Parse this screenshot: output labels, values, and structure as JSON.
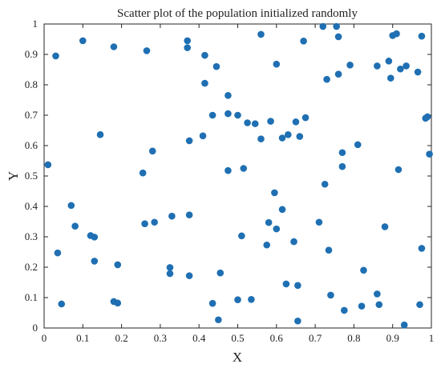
{
  "chart_data": {
    "type": "scatter",
    "title": "Scatter plot of the population initialized randomly",
    "xlabel": "X",
    "ylabel": "Y",
    "xlim": [
      0,
      1
    ],
    "ylim": [
      0,
      1
    ],
    "xticks": [
      "0",
      "0.1",
      "0.2",
      "0.3",
      "0.4",
      "0.5",
      "0.6",
      "0.7",
      "0.8",
      "0.9",
      "1"
    ],
    "yticks": [
      "0",
      "0.1",
      "0.2",
      "0.3",
      "0.4",
      "0.5",
      "0.6",
      "0.7",
      "0.8",
      "0.9",
      "1"
    ],
    "grid": false,
    "marker_color": "#1f6fb2",
    "points": [
      {
        "x": 0.03,
        "y": 0.895
      },
      {
        "x": 0.1,
        "y": 0.945
      },
      {
        "x": 0.18,
        "y": 0.925
      },
      {
        "x": 0.265,
        "y": 0.912
      },
      {
        "x": 0.37,
        "y": 0.945
      },
      {
        "x": 0.37,
        "y": 0.922
      },
      {
        "x": 0.415,
        "y": 0.897
      },
      {
        "x": 0.445,
        "y": 0.86
      },
      {
        "x": 0.415,
        "y": 0.805
      },
      {
        "x": 0.56,
        "y": 0.966
      },
      {
        "x": 0.6,
        "y": 0.868
      },
      {
        "x": 0.67,
        "y": 0.944
      },
      {
        "x": 0.72,
        "y": 0.992
      },
      {
        "x": 0.755,
        "y": 0.992
      },
      {
        "x": 0.76,
        "y": 0.958
      },
      {
        "x": 0.73,
        "y": 0.818
      },
      {
        "x": 0.76,
        "y": 0.835
      },
      {
        "x": 0.79,
        "y": 0.865
      },
      {
        "x": 0.86,
        "y": 0.862
      },
      {
        "x": 0.89,
        "y": 0.878
      },
      {
        "x": 0.895,
        "y": 0.822
      },
      {
        "x": 0.9,
        "y": 0.962
      },
      {
        "x": 0.91,
        "y": 0.968
      },
      {
        "x": 0.92,
        "y": 0.852
      },
      {
        "x": 0.935,
        "y": 0.862
      },
      {
        "x": 0.965,
        "y": 0.842
      },
      {
        "x": 0.975,
        "y": 0.96
      },
      {
        "x": 0.475,
        "y": 0.765
      },
      {
        "x": 0.435,
        "y": 0.7
      },
      {
        "x": 0.475,
        "y": 0.705
      },
      {
        "x": 0.5,
        "y": 0.7
      },
      {
        "x": 0.525,
        "y": 0.675
      },
      {
        "x": 0.545,
        "y": 0.672
      },
      {
        "x": 0.585,
        "y": 0.68
      },
      {
        "x": 0.65,
        "y": 0.678
      },
      {
        "x": 0.675,
        "y": 0.692
      },
      {
        "x": 0.985,
        "y": 0.69
      },
      {
        "x": 0.99,
        "y": 0.695
      },
      {
        "x": 0.145,
        "y": 0.636
      },
      {
        "x": 0.375,
        "y": 0.616
      },
      {
        "x": 0.41,
        "y": 0.632
      },
      {
        "x": 0.56,
        "y": 0.622
      },
      {
        "x": 0.615,
        "y": 0.625
      },
      {
        "x": 0.63,
        "y": 0.636
      },
      {
        "x": 0.66,
        "y": 0.63
      },
      {
        "x": 0.81,
        "y": 0.603
      },
      {
        "x": 0.28,
        "y": 0.582
      },
      {
        "x": 0.77,
        "y": 0.577
      },
      {
        "x": 0.995,
        "y": 0.572
      },
      {
        "x": 0.01,
        "y": 0.537
      },
      {
        "x": 0.77,
        "y": 0.531
      },
      {
        "x": 0.915,
        "y": 0.521
      },
      {
        "x": 0.255,
        "y": 0.51
      },
      {
        "x": 0.475,
        "y": 0.518
      },
      {
        "x": 0.515,
        "y": 0.525
      },
      {
        "x": 0.725,
        "y": 0.473
      },
      {
        "x": 0.595,
        "y": 0.445
      },
      {
        "x": 0.07,
        "y": 0.403
      },
      {
        "x": 0.615,
        "y": 0.39
      },
      {
        "x": 0.33,
        "y": 0.368
      },
      {
        "x": 0.375,
        "y": 0.372
      },
      {
        "x": 0.58,
        "y": 0.347
      },
      {
        "x": 0.71,
        "y": 0.348
      },
      {
        "x": 0.26,
        "y": 0.343
      },
      {
        "x": 0.285,
        "y": 0.348
      },
      {
        "x": 0.08,
        "y": 0.335
      },
      {
        "x": 0.6,
        "y": 0.326
      },
      {
        "x": 0.88,
        "y": 0.333
      },
      {
        "x": 0.12,
        "y": 0.304
      },
      {
        "x": 0.13,
        "y": 0.299
      },
      {
        "x": 0.51,
        "y": 0.303
      },
      {
        "x": 0.645,
        "y": 0.284
      },
      {
        "x": 0.575,
        "y": 0.273
      },
      {
        "x": 0.975,
        "y": 0.262
      },
      {
        "x": 0.735,
        "y": 0.256
      },
      {
        "x": 0.035,
        "y": 0.247
      },
      {
        "x": 0.13,
        "y": 0.22
      },
      {
        "x": 0.19,
        "y": 0.208
      },
      {
        "x": 0.325,
        "y": 0.199
      },
      {
        "x": 0.825,
        "y": 0.19
      },
      {
        "x": 0.325,
        "y": 0.179
      },
      {
        "x": 0.375,
        "y": 0.172
      },
      {
        "x": 0.455,
        "y": 0.181
      },
      {
        "x": 0.625,
        "y": 0.145
      },
      {
        "x": 0.655,
        "y": 0.14
      },
      {
        "x": 0.74,
        "y": 0.108
      },
      {
        "x": 0.86,
        "y": 0.112
      },
      {
        "x": 0.5,
        "y": 0.093
      },
      {
        "x": 0.535,
        "y": 0.094
      },
      {
        "x": 0.18,
        "y": 0.087
      },
      {
        "x": 0.19,
        "y": 0.082
      },
      {
        "x": 0.045,
        "y": 0.079
      },
      {
        "x": 0.435,
        "y": 0.081
      },
      {
        "x": 0.775,
        "y": 0.058
      },
      {
        "x": 0.82,
        "y": 0.072
      },
      {
        "x": 0.865,
        "y": 0.077
      },
      {
        "x": 0.97,
        "y": 0.077
      },
      {
        "x": 0.45,
        "y": 0.027
      },
      {
        "x": 0.655,
        "y": 0.023
      },
      {
        "x": 0.93,
        "y": 0.01
      }
    ]
  }
}
